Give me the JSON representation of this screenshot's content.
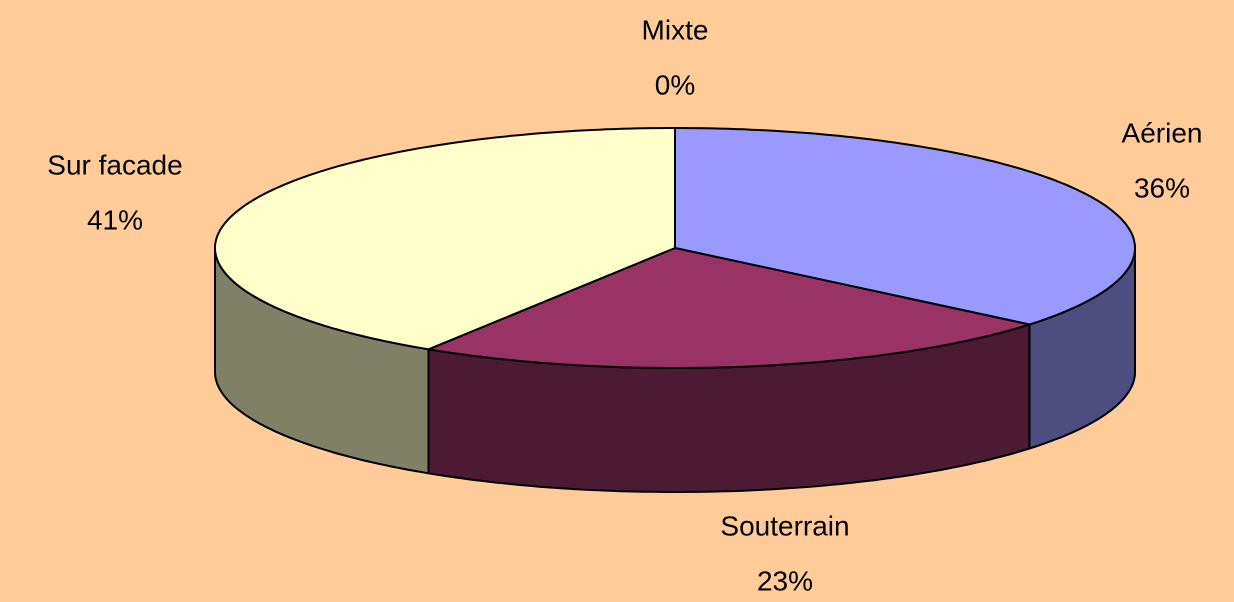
{
  "chart_data": {
    "type": "pie",
    "categories": [
      "Aérien",
      "Souterrain",
      "Sur facade",
      "Mixte"
    ],
    "values": [
      36,
      23,
      41,
      0
    ],
    "value_labels": [
      "36%",
      "23%",
      "41%",
      "0%"
    ],
    "colors": [
      "#9999ff",
      "#993366",
      "#ffffcc",
      "#ccffff"
    ]
  }
}
